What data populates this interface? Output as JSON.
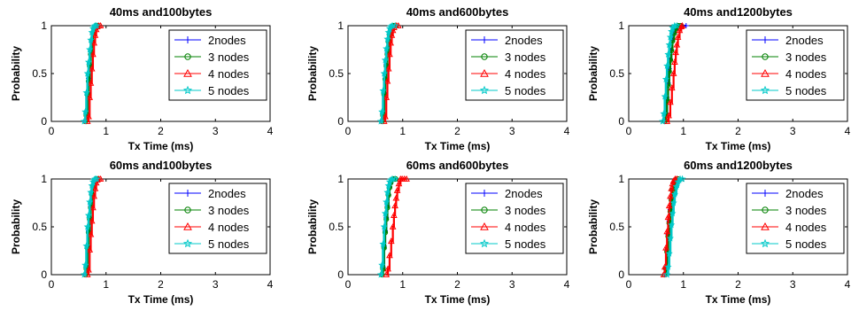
{
  "chart_data": [
    {
      "type": "line",
      "title": "40ms and100bytes",
      "xlabel": "Tx Time (ms)",
      "ylabel": "Probability",
      "xlim": [
        0,
        4
      ],
      "ylim": [
        0,
        1
      ],
      "xticks": [
        "0",
        "1",
        "2",
        "3",
        "4"
      ],
      "yticks": [
        "0",
        "0.5",
        "1"
      ],
      "grid": false,
      "legend_position": "right",
      "series": [
        {
          "name": "2nodes",
          "color": "#0000ff",
          "marker": "plus",
          "x": [
            0.62,
            0.64,
            0.66,
            0.68,
            0.7,
            0.72,
            0.74,
            0.76,
            0.78,
            0.8,
            0.82,
            0.84
          ],
          "y": [
            0,
            0.08,
            0.3,
            0.45,
            0.6,
            0.7,
            0.85,
            0.92,
            0.97,
            0.99,
            1,
            1
          ]
        },
        {
          "name": "3 nodes",
          "color": "#008000",
          "marker": "circle",
          "x": [
            0.62,
            0.64,
            0.66,
            0.68,
            0.7,
            0.72,
            0.74,
            0.76,
            0.78,
            0.8,
            0.82,
            0.85
          ],
          "y": [
            0,
            0.06,
            0.28,
            0.42,
            0.58,
            0.7,
            0.84,
            0.92,
            0.97,
            0.99,
            1,
            1
          ]
        },
        {
          "name": "4 nodes",
          "color": "#ff0000",
          "marker": "triangle",
          "x": [
            0.66,
            0.68,
            0.7,
            0.72,
            0.74,
            0.76,
            0.78,
            0.8,
            0.82,
            0.84,
            0.87,
            0.9
          ],
          "y": [
            0,
            0.05,
            0.25,
            0.4,
            0.55,
            0.7,
            0.82,
            0.9,
            0.96,
            0.99,
            1,
            1
          ]
        },
        {
          "name": "5 nodes",
          "color": "#00c8c8",
          "marker": "star",
          "x": [
            0.6,
            0.62,
            0.64,
            0.66,
            0.68,
            0.7,
            0.72,
            0.74,
            0.76,
            0.78,
            0.8,
            0.83
          ],
          "y": [
            0,
            0.1,
            0.3,
            0.5,
            0.62,
            0.75,
            0.85,
            0.93,
            0.97,
            0.99,
            1,
            1
          ]
        }
      ]
    },
    {
      "type": "line",
      "title": "40ms and600bytes",
      "xlabel": "Tx Time (ms)",
      "ylabel": "Probability",
      "xlim": [
        0,
        4
      ],
      "ylim": [
        0,
        1
      ],
      "xticks": [
        "0",
        "1",
        "2",
        "3",
        "4"
      ],
      "yticks": [
        "0",
        "0.5",
        "1"
      ],
      "grid": false,
      "legend_position": "right",
      "series": [
        {
          "name": "2nodes",
          "color": "#0000ff",
          "marker": "plus",
          "x": [
            0.62,
            0.64,
            0.66,
            0.68,
            0.7,
            0.72,
            0.74,
            0.76,
            0.78,
            0.8,
            0.83,
            0.86
          ],
          "y": [
            0,
            0.08,
            0.3,
            0.45,
            0.6,
            0.72,
            0.84,
            0.92,
            0.96,
            0.99,
            1,
            1
          ]
        },
        {
          "name": "3 nodes",
          "color": "#008000",
          "marker": "circle",
          "x": [
            0.62,
            0.64,
            0.66,
            0.68,
            0.7,
            0.72,
            0.74,
            0.76,
            0.78,
            0.8,
            0.83,
            0.87
          ],
          "y": [
            0,
            0.06,
            0.28,
            0.44,
            0.58,
            0.7,
            0.83,
            0.91,
            0.96,
            0.99,
            1,
            1
          ]
        },
        {
          "name": "4 nodes",
          "color": "#ff0000",
          "marker": "triangle",
          "x": [
            0.66,
            0.68,
            0.7,
            0.72,
            0.74,
            0.76,
            0.78,
            0.8,
            0.82,
            0.84,
            0.88,
            0.92
          ],
          "y": [
            0,
            0.05,
            0.25,
            0.42,
            0.55,
            0.7,
            0.82,
            0.9,
            0.95,
            0.98,
            1,
            1
          ]
        },
        {
          "name": "5 nodes",
          "color": "#00c8c8",
          "marker": "star",
          "x": [
            0.6,
            0.62,
            0.64,
            0.66,
            0.68,
            0.7,
            0.72,
            0.74,
            0.76,
            0.78,
            0.81,
            0.86
          ],
          "y": [
            0,
            0.1,
            0.32,
            0.5,
            0.64,
            0.76,
            0.86,
            0.93,
            0.97,
            0.99,
            1,
            1
          ]
        }
      ]
    },
    {
      "type": "line",
      "title": "40ms and1200bytes",
      "xlabel": "Tx Time (ms)",
      "ylabel": "Probability",
      "xlim": [
        0,
        4
      ],
      "ylim": [
        0,
        1
      ],
      "xticks": [
        "0",
        "1",
        "2",
        "3",
        "4"
      ],
      "yticks": [
        "0",
        "0.5",
        "1"
      ],
      "grid": false,
      "legend_position": "right",
      "series": [
        {
          "name": "2nodes",
          "color": "#0000ff",
          "marker": "plus",
          "x": [
            0.66,
            0.68,
            0.7,
            0.72,
            0.74,
            0.76,
            0.78,
            0.8,
            0.82,
            0.85,
            0.9,
            0.97,
            1.05
          ],
          "y": [
            0,
            0.08,
            0.25,
            0.4,
            0.55,
            0.65,
            0.75,
            0.85,
            0.92,
            0.96,
            0.99,
            1,
            1
          ]
        },
        {
          "name": "3 nodes",
          "color": "#008000",
          "marker": "circle",
          "x": [
            0.66,
            0.68,
            0.7,
            0.72,
            0.74,
            0.76,
            0.78,
            0.8,
            0.83,
            0.86,
            0.9,
            0.95
          ],
          "y": [
            0,
            0.06,
            0.22,
            0.38,
            0.52,
            0.64,
            0.74,
            0.84,
            0.92,
            0.97,
            1,
            1
          ]
        },
        {
          "name": "4 nodes",
          "color": "#ff0000",
          "marker": "triangle",
          "x": [
            0.7,
            0.73,
            0.76,
            0.79,
            0.82,
            0.84,
            0.86,
            0.88,
            0.9,
            0.93,
            0.96,
            0.98
          ],
          "y": [
            0,
            0.06,
            0.2,
            0.35,
            0.5,
            0.62,
            0.72,
            0.8,
            0.88,
            0.95,
            0.99,
            1
          ]
        },
        {
          "name": "5 nodes",
          "color": "#00c8c8",
          "marker": "star",
          "x": [
            0.62,
            0.64,
            0.66,
            0.68,
            0.7,
            0.72,
            0.74,
            0.76,
            0.78,
            0.8,
            0.84,
            0.88
          ],
          "y": [
            0,
            0.08,
            0.26,
            0.44,
            0.58,
            0.7,
            0.8,
            0.88,
            0.94,
            0.98,
            1,
            1
          ]
        }
      ]
    },
    {
      "type": "line",
      "title": "60ms and100bytes",
      "xlabel": "Tx Time (ms)",
      "ylabel": "Probability",
      "xlim": [
        0,
        4
      ],
      "ylim": [
        0,
        1
      ],
      "xticks": [
        "0",
        "1",
        "2",
        "3",
        "4"
      ],
      "yticks": [
        "0",
        "0.5",
        "1"
      ],
      "grid": false,
      "legend_position": "right",
      "series": [
        {
          "name": "2nodes",
          "color": "#0000ff",
          "marker": "plus",
          "x": [
            0.62,
            0.64,
            0.66,
            0.68,
            0.7,
            0.72,
            0.74,
            0.76,
            0.78,
            0.8,
            0.82,
            0.84
          ],
          "y": [
            0,
            0.08,
            0.3,
            0.46,
            0.6,
            0.72,
            0.85,
            0.92,
            0.97,
            0.99,
            1,
            1
          ]
        },
        {
          "name": "3 nodes",
          "color": "#008000",
          "marker": "circle",
          "x": [
            0.62,
            0.64,
            0.66,
            0.68,
            0.7,
            0.72,
            0.74,
            0.76,
            0.78,
            0.8,
            0.82,
            0.85
          ],
          "y": [
            0,
            0.06,
            0.28,
            0.44,
            0.58,
            0.7,
            0.84,
            0.92,
            0.97,
            0.99,
            1,
            1
          ]
        },
        {
          "name": "4 nodes",
          "color": "#ff0000",
          "marker": "triangle",
          "x": [
            0.66,
            0.68,
            0.7,
            0.72,
            0.74,
            0.76,
            0.78,
            0.8,
            0.82,
            0.84,
            0.87,
            0.9
          ],
          "y": [
            0,
            0.05,
            0.26,
            0.42,
            0.56,
            0.7,
            0.82,
            0.9,
            0.96,
            0.99,
            1,
            1
          ]
        },
        {
          "name": "5 nodes",
          "color": "#00c8c8",
          "marker": "star",
          "x": [
            0.6,
            0.62,
            0.64,
            0.66,
            0.68,
            0.7,
            0.72,
            0.74,
            0.76,
            0.78,
            0.8,
            0.83
          ],
          "y": [
            0,
            0.1,
            0.3,
            0.5,
            0.62,
            0.76,
            0.86,
            0.93,
            0.97,
            0.99,
            1,
            1
          ]
        }
      ]
    },
    {
      "type": "line",
      "title": "60ms and600bytes",
      "xlabel": "Tx Time (ms)",
      "ylabel": "Probability",
      "xlim": [
        0,
        4
      ],
      "ylim": [
        0,
        1
      ],
      "xticks": [
        "0",
        "1",
        "2",
        "3",
        "4"
      ],
      "yticks": [
        "0",
        "0.5",
        "1"
      ],
      "grid": false,
      "legend_position": "right",
      "series": [
        {
          "name": "2nodes",
          "color": "#0000ff",
          "marker": "plus",
          "x": [
            0.62,
            0.64,
            0.66,
            0.68,
            0.7,
            0.72,
            0.74,
            0.76,
            0.78,
            0.8,
            0.83,
            0.86
          ],
          "y": [
            0,
            0.08,
            0.3,
            0.46,
            0.6,
            0.72,
            0.84,
            0.92,
            0.96,
            0.99,
            1,
            1
          ]
        },
        {
          "name": "3 nodes",
          "color": "#008000",
          "marker": "circle",
          "x": [
            0.62,
            0.64,
            0.66,
            0.68,
            0.7,
            0.72,
            0.74,
            0.76,
            0.78,
            0.8,
            0.83,
            0.87
          ],
          "y": [
            0,
            0.06,
            0.28,
            0.44,
            0.58,
            0.7,
            0.83,
            0.91,
            0.96,
            0.99,
            1,
            1
          ]
        },
        {
          "name": "4 nodes",
          "color": "#ff0000",
          "marker": "triangle",
          "x": [
            0.7,
            0.73,
            0.76,
            0.79,
            0.82,
            0.84,
            0.86,
            0.88,
            0.9,
            0.93,
            0.96,
            0.99,
            1.03,
            1.07
          ],
          "y": [
            0,
            0.06,
            0.2,
            0.35,
            0.5,
            0.62,
            0.72,
            0.8,
            0.88,
            0.95,
            1,
            1,
            1,
            1
          ]
        },
        {
          "name": "5 nodes",
          "color": "#00c8c8",
          "marker": "star",
          "x": [
            0.6,
            0.62,
            0.64,
            0.66,
            0.68,
            0.7,
            0.72,
            0.74,
            0.76,
            0.78,
            0.81,
            0.86
          ],
          "y": [
            0,
            0.1,
            0.32,
            0.5,
            0.64,
            0.76,
            0.86,
            0.93,
            0.97,
            0.99,
            1,
            1
          ]
        }
      ]
    },
    {
      "type": "line",
      "title": "60ms and1200bytes",
      "xlabel": "Tx Time (ms)",
      "ylabel": "Probability",
      "xlim": [
        0,
        4
      ],
      "ylim": [
        0,
        1
      ],
      "xticks": [
        "0",
        "1",
        "2",
        "3",
        "4"
      ],
      "yticks": [
        "0",
        "0.5",
        "1"
      ],
      "grid": false,
      "legend_position": "right",
      "series": [
        {
          "name": "2nodes",
          "color": "#0000ff",
          "marker": "plus",
          "x": [
            0.66,
            0.68,
            0.7,
            0.72,
            0.74,
            0.76,
            0.78,
            0.8,
            0.82,
            0.85,
            0.88
          ],
          "y": [
            0,
            0.08,
            0.26,
            0.42,
            0.56,
            0.68,
            0.8,
            0.9,
            0.96,
            0.99,
            1
          ]
        },
        {
          "name": "3 nodes",
          "color": "#008000",
          "marker": "circle",
          "x": [
            0.66,
            0.68,
            0.7,
            0.72,
            0.74,
            0.76,
            0.78,
            0.8,
            0.83,
            0.86,
            0.9
          ],
          "y": [
            0,
            0.06,
            0.24,
            0.4,
            0.54,
            0.66,
            0.78,
            0.88,
            0.95,
            0.99,
            1
          ]
        },
        {
          "name": "4 nodes",
          "color": "#ff0000",
          "marker": "triangle",
          "x": [
            0.64,
            0.66,
            0.68,
            0.7,
            0.72,
            0.74,
            0.76,
            0.78,
            0.8,
            0.82,
            0.85,
            0.88
          ],
          "y": [
            0,
            0.08,
            0.28,
            0.45,
            0.6,
            0.72,
            0.82,
            0.9,
            0.95,
            0.98,
            1,
            1
          ]
        },
        {
          "name": "5 nodes",
          "color": "#00c8c8",
          "marker": "star",
          "x": [
            0.7,
            0.72,
            0.74,
            0.76,
            0.78,
            0.8,
            0.82,
            0.84,
            0.87,
            0.9,
            0.94,
            0.98
          ],
          "y": [
            0,
            0.08,
            0.22,
            0.38,
            0.52,
            0.64,
            0.75,
            0.84,
            0.92,
            0.97,
            1,
            1
          ]
        }
      ]
    }
  ]
}
